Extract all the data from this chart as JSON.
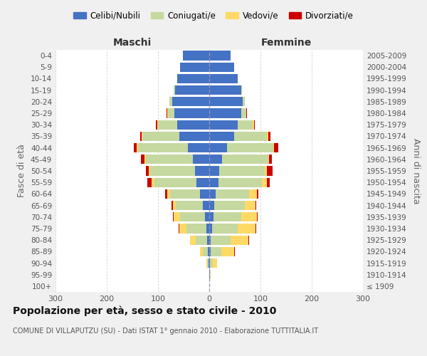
{
  "age_groups": [
    "100+",
    "95-99",
    "90-94",
    "85-89",
    "80-84",
    "75-79",
    "70-74",
    "65-69",
    "60-64",
    "55-59",
    "50-54",
    "45-49",
    "40-44",
    "35-39",
    "30-34",
    "25-29",
    "20-24",
    "15-19",
    "10-14",
    "5-9",
    "0-4"
  ],
  "birth_years": [
    "≤ 1909",
    "1910-1914",
    "1915-1919",
    "1920-1924",
    "1925-1929",
    "1930-1934",
    "1935-1939",
    "1940-1944",
    "1945-1949",
    "1950-1954",
    "1955-1959",
    "1960-1964",
    "1965-1969",
    "1970-1974",
    "1975-1979",
    "1980-1984",
    "1985-1989",
    "1990-1994",
    "1995-1999",
    "2000-2004",
    "2005-2009"
  ],
  "colors": {
    "celibi": "#4472c4",
    "coniugati": "#c5d8a0",
    "vedovi": "#ffd966",
    "divorziati": "#cc0000"
  },
  "males": {
    "celibi": [
      0,
      0,
      1,
      3,
      4,
      6,
      9,
      13,
      18,
      25,
      28,
      32,
      42,
      58,
      62,
      68,
      72,
      67,
      62,
      57,
      52
    ],
    "coniugati": [
      0,
      0,
      3,
      9,
      22,
      38,
      48,
      52,
      58,
      82,
      87,
      92,
      97,
      72,
      38,
      12,
      6,
      2,
      0,
      0,
      0
    ],
    "vedovi": [
      0,
      0,
      2,
      6,
      12,
      14,
      12,
      6,
      6,
      6,
      3,
      2,
      2,
      2,
      2,
      2,
      0,
      0,
      0,
      0,
      0
    ],
    "divorziati": [
      0,
      0,
      0,
      0,
      0,
      2,
      2,
      3,
      4,
      8,
      5,
      8,
      6,
      3,
      2,
      2,
      0,
      0,
      0,
      0,
      0
    ]
  },
  "females": {
    "nubili": [
      0,
      1,
      2,
      3,
      3,
      5,
      8,
      10,
      13,
      18,
      20,
      25,
      35,
      48,
      55,
      62,
      65,
      62,
      55,
      48,
      42
    ],
    "coniugati": [
      0,
      1,
      5,
      20,
      38,
      50,
      55,
      60,
      65,
      85,
      88,
      90,
      90,
      65,
      30,
      10,
      5,
      2,
      0,
      0,
      0
    ],
    "vedovi": [
      0,
      1,
      8,
      25,
      35,
      35,
      30,
      20,
      15,
      10,
      5,
      2,
      2,
      2,
      2,
      0,
      0,
      0,
      0,
      0,
      0
    ],
    "divorziati": [
      0,
      0,
      0,
      2,
      2,
      2,
      2,
      2,
      3,
      5,
      10,
      5,
      8,
      5,
      2,
      2,
      0,
      0,
      0,
      0,
      0
    ]
  },
  "title": "Popolazione per età, sesso e stato civile - 2010",
  "subtitle": "COMUNE DI VILLAPUTZU (SU) - Dati ISTAT 1° gennaio 2010 - Elaborazione TUTTITALIA.IT",
  "xlabel_left": "Maschi",
  "xlabel_right": "Femmine",
  "ylabel_left": "Fasce di età",
  "ylabel_right": "Anni di nascita",
  "xlim": 300,
  "legend_labels": [
    "Celibi/Nubili",
    "Coniugati/e",
    "Vedovi/e",
    "Divorziati/e"
  ],
  "bg_color": "#f0f0f0",
  "plot_bg_color": "#ffffff"
}
